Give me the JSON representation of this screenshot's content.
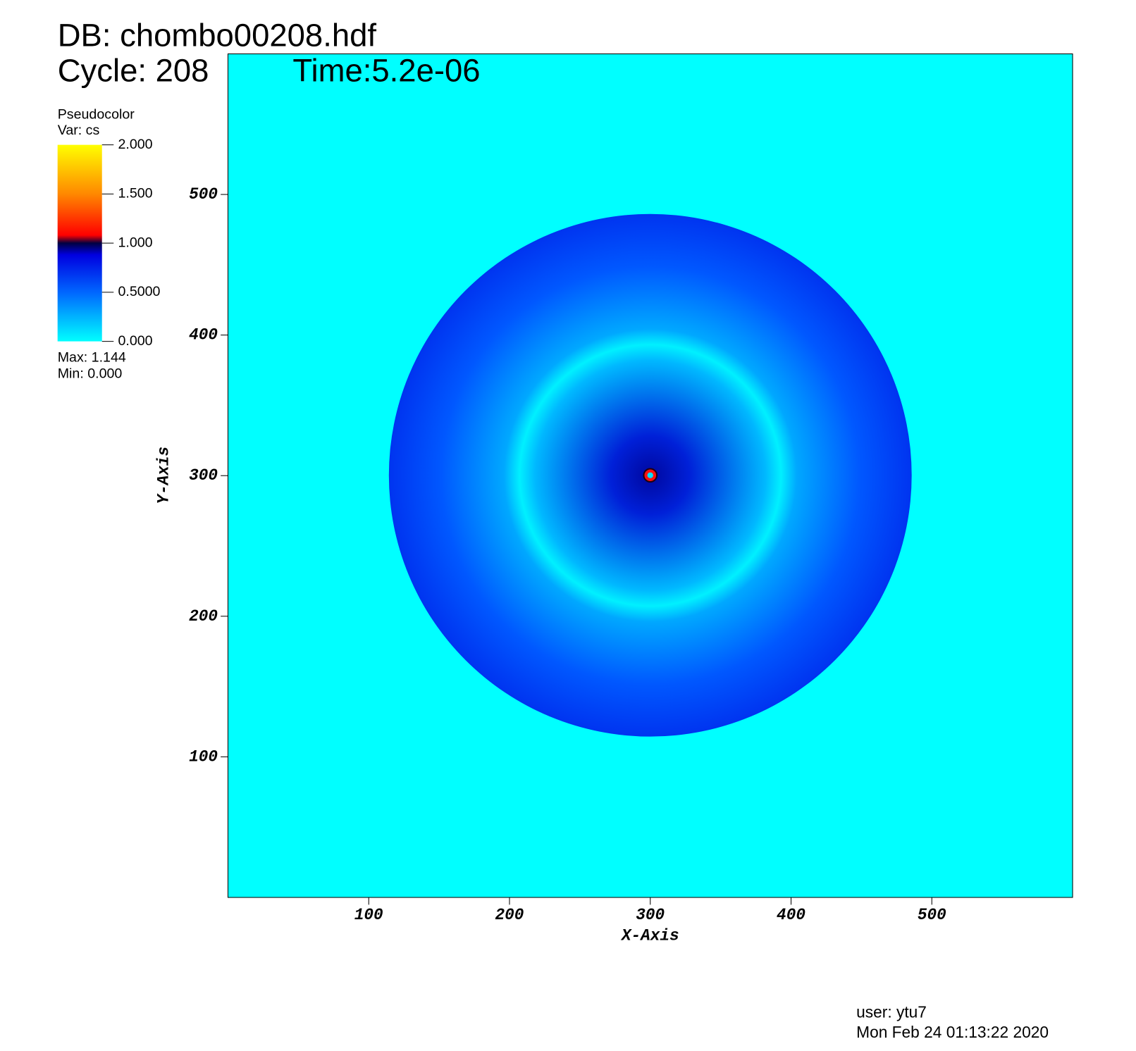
{
  "chart_data": {
    "type": "pseudocolor",
    "title": "DB: chombo00208.hdf",
    "cycle": "Cycle: 208",
    "time": "Time:5.2e-06",
    "legend_title": "Pseudocolor",
    "variable": "Var: cs",
    "colorbar_lim": [
      0,
      2
    ],
    "colorbar_ticks": [
      {
        "value": 0,
        "label": "0.000"
      },
      {
        "value": 0.5,
        "label": "0.5000"
      },
      {
        "value": 1,
        "label": "1.000"
      },
      {
        "value": 1.5,
        "label": "1.500"
      },
      {
        "value": 2,
        "label": "2.000"
      }
    ],
    "max_text": "Max:  1.144",
    "min_text": "Min:  0.000",
    "x_label": "X-Axis",
    "y_label": "Y-Axis",
    "xlim": [
      0,
      600
    ],
    "ylim": [
      0,
      600
    ],
    "xticks": [
      100,
      200,
      300,
      400,
      500
    ],
    "yticks": [
      100,
      200,
      300,
      400,
      500
    ],
    "user": "user: ytu7",
    "date": "Mon Feb 24 01:13:22 2020"
  }
}
